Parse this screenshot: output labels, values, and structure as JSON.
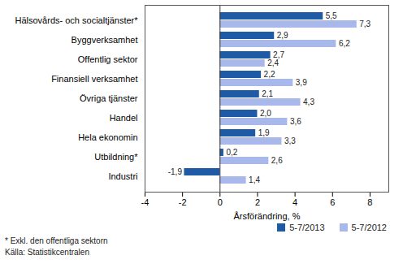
{
  "chart_data": {
    "type": "bar",
    "orientation": "horizontal",
    "categories": [
      "Hälsovårds- och socialtjänster*",
      "Byggverksamhet",
      "Offentlig sektor",
      "Finansiell verksamhet",
      "Övriga tjänster",
      "Handel",
      "Hela ekonomin",
      "Utbildning*",
      "Industri"
    ],
    "series": [
      {
        "name": "5-7/2013",
        "color": "#1f5aa6",
        "values": [
          5.5,
          2.9,
          2.7,
          2.2,
          2.1,
          2.0,
          1.9,
          0.2,
          -1.9
        ],
        "value_labels": [
          "5,5",
          "2,9",
          "2,7",
          "2,2",
          "2,1",
          "2,0",
          "1,9",
          "0,2",
          "-1,9"
        ]
      },
      {
        "name": "5-7/2012",
        "color": "#a8b8ea",
        "values": [
          7.3,
          6.2,
          2.4,
          3.9,
          4.3,
          3.6,
          3.3,
          2.6,
          1.4
        ],
        "value_labels": [
          "7,3",
          "6,2",
          "2,4",
          "3,9",
          "4,3",
          "3,6",
          "3,3",
          "2,6",
          "1,4"
        ]
      }
    ],
    "xlabel": "Årsförändring, %",
    "xlim": [
      -4,
      9
    ],
    "xticks": [
      -4,
      -2,
      0,
      2,
      4,
      6,
      8
    ],
    "grid": false,
    "data_labels": true,
    "legend": "bottom-right",
    "notes": [
      "* Exkl. den offentliga sektorn",
      "Källa: Statistikcentralen"
    ]
  }
}
